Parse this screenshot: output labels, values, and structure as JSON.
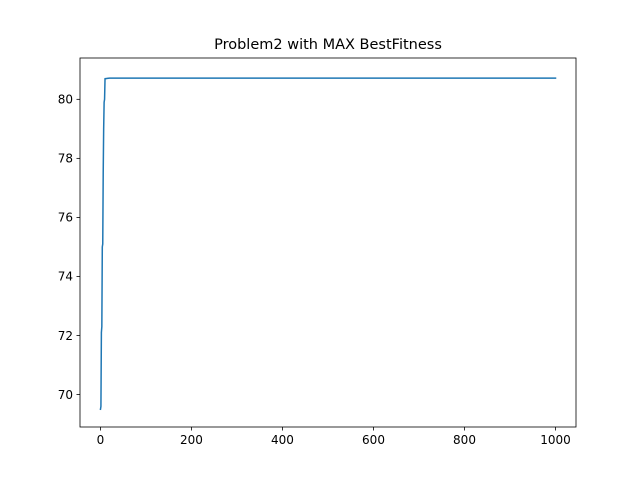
{
  "chart_data": {
    "type": "line",
    "title": "Problem2 with MAX BestFitness",
    "xlabel": "",
    "ylabel": "",
    "xlim": [
      -45,
      1045
    ],
    "ylim": [
      68.9,
      81.4
    ],
    "x_ticks": [
      0,
      200,
      400,
      600,
      800,
      1000
    ],
    "y_ticks": [
      70,
      72,
      74,
      76,
      78,
      80
    ],
    "x_tick_labels": [
      "0",
      "200",
      "400",
      "600",
      "800",
      "1000"
    ],
    "y_tick_labels": [
      "70",
      "72",
      "74",
      "76",
      "78",
      "80"
    ],
    "grid": false,
    "series": [
      {
        "color": "#1f77b4",
        "x": [
          0,
          1,
          2,
          2.5,
          3,
          4,
          5,
          6,
          7,
          8,
          9,
          10,
          12,
          15,
          20,
          50,
          100,
          200,
          400,
          600,
          800,
          1000
        ],
        "y": [
          69.5,
          69.6,
          72.1,
          72.2,
          72.3,
          75.0,
          75.1,
          77.5,
          79.0,
          79.9,
          80.0,
          80.7,
          80.7,
          80.71,
          80.72,
          80.72,
          80.72,
          80.72,
          80.72,
          80.72,
          80.72,
          80.72
        ]
      }
    ]
  }
}
